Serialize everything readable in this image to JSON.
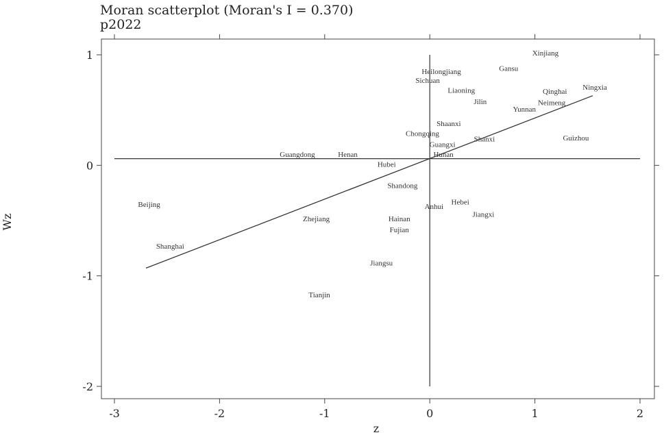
{
  "chart_data": {
    "type": "scatter",
    "title": "Moran scatterplot (Moran's I = 0.370)",
    "subtitle": "p2022",
    "xlabel": "z",
    "ylabel": "Wz",
    "xlim": [
      -3,
      2
    ],
    "ylim": [
      -2,
      1
    ],
    "xticks": [
      "-3",
      "-2",
      "-1",
      "0",
      "1",
      "2"
    ],
    "yticks": [
      "-2",
      "-1",
      "0",
      "1"
    ],
    "reference_lines": {
      "x": 0,
      "y": 0.06
    },
    "regression_line": {
      "x": [
        -2.7,
        1.55
      ],
      "y": [
        -0.93,
        0.63
      ]
    },
    "points": [
      {
        "label": "Xinjiang",
        "x": 1.1,
        "y": 1.02
      },
      {
        "label": "Gansu",
        "x": 0.75,
        "y": 0.88
      },
      {
        "label": "Heilongjiang",
        "x": 0.11,
        "y": 0.85
      },
      {
        "label": "Sichuan",
        "x": -0.02,
        "y": 0.77
      },
      {
        "label": "Ningxia",
        "x": 1.57,
        "y": 0.71
      },
      {
        "label": "Liaoning",
        "x": 0.3,
        "y": 0.68
      },
      {
        "label": "Qinghai",
        "x": 1.19,
        "y": 0.67
      },
      {
        "label": "Jilin",
        "x": 0.48,
        "y": 0.58
      },
      {
        "label": "Neimeng",
        "x": 1.16,
        "y": 0.57
      },
      {
        "label": "Yunnan",
        "x": 0.9,
        "y": 0.51
      },
      {
        "label": "Shaanxi",
        "x": 0.18,
        "y": 0.38
      },
      {
        "label": "Chongqing",
        "x": -0.07,
        "y": 0.29
      },
      {
        "label": "Guizhou",
        "x": 1.39,
        "y": 0.25
      },
      {
        "label": "Shanxi",
        "x": 0.52,
        "y": 0.24
      },
      {
        "label": "Guangxi",
        "x": 0.12,
        "y": 0.19
      },
      {
        "label": "Guangdong",
        "x": -1.26,
        "y": 0.1
      },
      {
        "label": "Henan",
        "x": -0.78,
        "y": 0.1
      },
      {
        "label": "Hunan",
        "x": 0.13,
        "y": 0.1
      },
      {
        "label": "Hubei",
        "x": -0.41,
        "y": 0.01
      },
      {
        "label": "Shandong",
        "x": -0.26,
        "y": -0.18
      },
      {
        "label": "Hebei",
        "x": 0.29,
        "y": -0.33
      },
      {
        "label": "Beijing",
        "x": -2.67,
        "y": -0.35
      },
      {
        "label": "Anhui",
        "x": 0.04,
        "y": -0.37
      },
      {
        "label": "Jiangxi",
        "x": 0.51,
        "y": -0.44
      },
      {
        "label": "Zhejiang",
        "x": -1.08,
        "y": -0.48
      },
      {
        "label": "Hainan",
        "x": -0.29,
        "y": -0.48
      },
      {
        "label": "Fujian",
        "x": -0.29,
        "y": -0.58
      },
      {
        "label": "Shanghai",
        "x": -2.47,
        "y": -0.73
      },
      {
        "label": "Jiangsu",
        "x": -0.46,
        "y": -0.88
      },
      {
        "label": "Tianjin",
        "x": -1.05,
        "y": -1.17
      }
    ]
  }
}
